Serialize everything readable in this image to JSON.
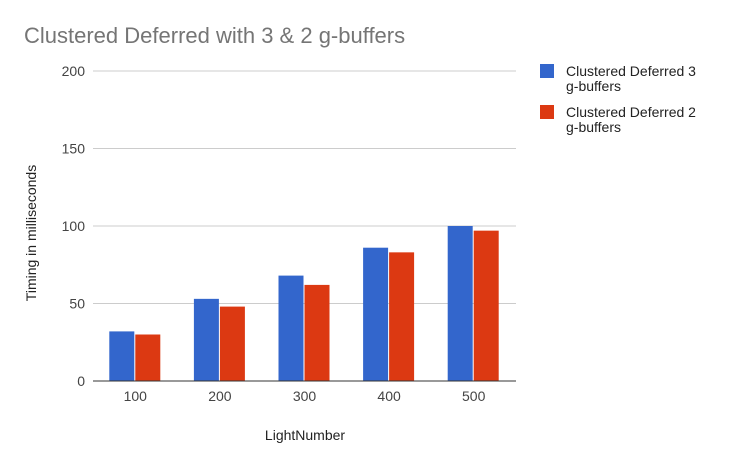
{
  "chart_data": {
    "type": "bar",
    "title": "Clustered Deferred with 3 & 2 g-buffers",
    "xlabel": "LightNumber",
    "ylabel": "Timing in milliseconds",
    "categories": [
      "100",
      "200",
      "300",
      "400",
      "500"
    ],
    "ylim": [
      0,
      200
    ],
    "yticks": [
      0,
      50,
      100,
      150,
      200
    ],
    "grid": true,
    "legend_position": "right",
    "series": [
      {
        "name": "Clustered Deferred 3 g-buffers",
        "legend_lines": [
          "Clustered Deferred 3",
          "g-buffers"
        ],
        "color": "#3366cc",
        "values": [
          32,
          53,
          68,
          86,
          100
        ]
      },
      {
        "name": "Clustered Deferred 2 g-buffers",
        "legend_lines": [
          "Clustered Deferred 2",
          "g-buffers"
        ],
        "color": "#dc3912",
        "values": [
          30,
          48,
          62,
          83,
          97
        ]
      }
    ]
  }
}
